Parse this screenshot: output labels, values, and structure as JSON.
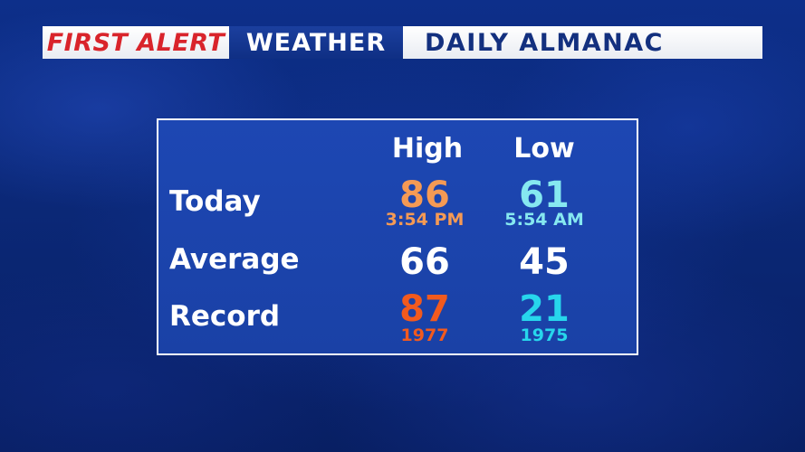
{
  "header": {
    "first_alert": "FIRST ALERT",
    "weather": "WEATHER",
    "title": "DAILY ALMANAC"
  },
  "table": {
    "columns": {
      "high": "High",
      "low": "Low"
    },
    "today": {
      "label": "Today",
      "high": "86",
      "high_time": "3:54 PM",
      "low": "61",
      "low_time": "5:54 AM"
    },
    "average": {
      "label": "Average",
      "high": "66",
      "low": "45"
    },
    "record": {
      "label": "Record",
      "high": "87",
      "high_year": "1977",
      "low": "21",
      "low_year": "1975"
    }
  },
  "colors": {
    "today_high": "#f59a54",
    "today_low": "#86e8f0",
    "record_high": "#f25a1e",
    "record_low": "#27d6ec",
    "brand_red": "#d9242b",
    "panel_blue": "#1d47b3"
  }
}
